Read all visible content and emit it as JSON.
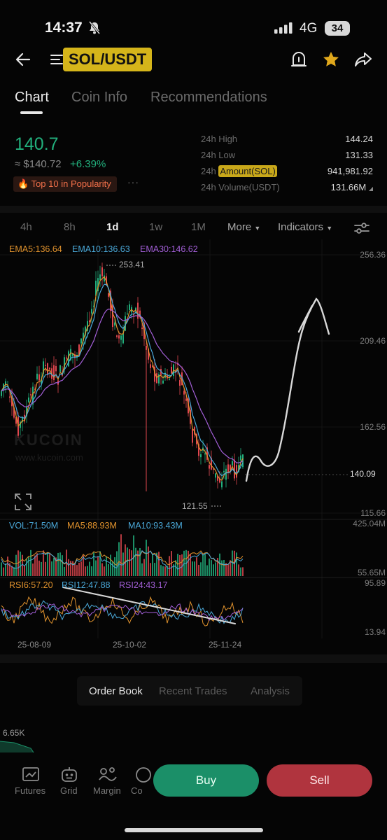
{
  "status_bar": {
    "time": "14:37",
    "network": "4G",
    "battery": "34"
  },
  "header": {
    "pair": "SOL/USDT"
  },
  "tabs": [
    {
      "label": "Chart",
      "active": true
    },
    {
      "label": "Coin Info",
      "active": false
    },
    {
      "label": "Recommendations",
      "active": false
    }
  ],
  "price": {
    "last": "140.7",
    "fiat": "≈ $140.72",
    "change": "+6.39%",
    "badge": "Top 10 in Popularity",
    "more": "···"
  },
  "stats": [
    {
      "label": "24h High",
      "value": "144.24"
    },
    {
      "label": "24h Low",
      "value": "131.33"
    },
    {
      "label_prefix": "24h ",
      "label_highlight": "Amount(SOL)",
      "value": "941,981.92"
    },
    {
      "label": "24h Volume(USDT)",
      "value": "131.66M"
    }
  ],
  "timeframes": [
    {
      "label": "4h",
      "active": false
    },
    {
      "label": "8h",
      "active": false
    },
    {
      "label": "1d",
      "active": true
    },
    {
      "label": "1w",
      "active": false
    },
    {
      "label": "1M",
      "active": false
    }
  ],
  "toolbar": {
    "more": "More",
    "indicators": "Indicators"
  },
  "indicators": {
    "ema5": "EMA5:136.64",
    "ema10": "EMA10:136.63",
    "ema30": "EMA30:146.62",
    "vol": "VOL:71.50M",
    "ma5": "MA5:88.93M",
    "ma10": "MA10:93.43M",
    "rsi6": "RSI6:57.20",
    "rsi12": "RSI12:47.88",
    "rsi24": "RSI24:43.17"
  },
  "watermark": {
    "brand": "KUCOIN",
    "url": "www.kucoin.com"
  },
  "chart_data": {
    "type": "candlestick",
    "price_axis": [
      "256.36",
      "209.46",
      "162.56",
      "115.66"
    ],
    "last_price_tag": "140.09",
    "high_marker": "253.41",
    "low_marker": "121.55",
    "volume_axis": [
      "425.04M",
      "55.65M"
    ],
    "rsi_axis": [
      "95.89",
      "13.94"
    ],
    "dates": [
      "25-08-09",
      "25-10-02",
      "25-11-24"
    ],
    "series": [
      {
        "name": "EMA5",
        "color": "#e0922d"
      },
      {
        "name": "EMA10",
        "color": "#4aa8d8"
      },
      {
        "name": "EMA30",
        "color": "#a35fd8"
      }
    ],
    "ylim": [
      115.66,
      256.36
    ]
  },
  "order_tabs": [
    {
      "label": "Order Book",
      "active": true
    },
    {
      "label": "Recent Trades",
      "active": false
    },
    {
      "label": "Analysis",
      "active": false
    }
  ],
  "depth": {
    "label": "6.65K"
  },
  "bottom_nav": [
    {
      "label": "Futures",
      "icon": "futures-icon"
    },
    {
      "label": "Grid",
      "icon": "grid-bot-icon"
    },
    {
      "label": "Margin",
      "icon": "margin-icon"
    },
    {
      "label": "Co",
      "icon": "copy-icon"
    }
  ],
  "actions": {
    "buy": "Buy",
    "sell": "Sell"
  },
  "colors": {
    "up": "#22b07d",
    "down": "#e0474f",
    "accent": "#d5b51a"
  }
}
